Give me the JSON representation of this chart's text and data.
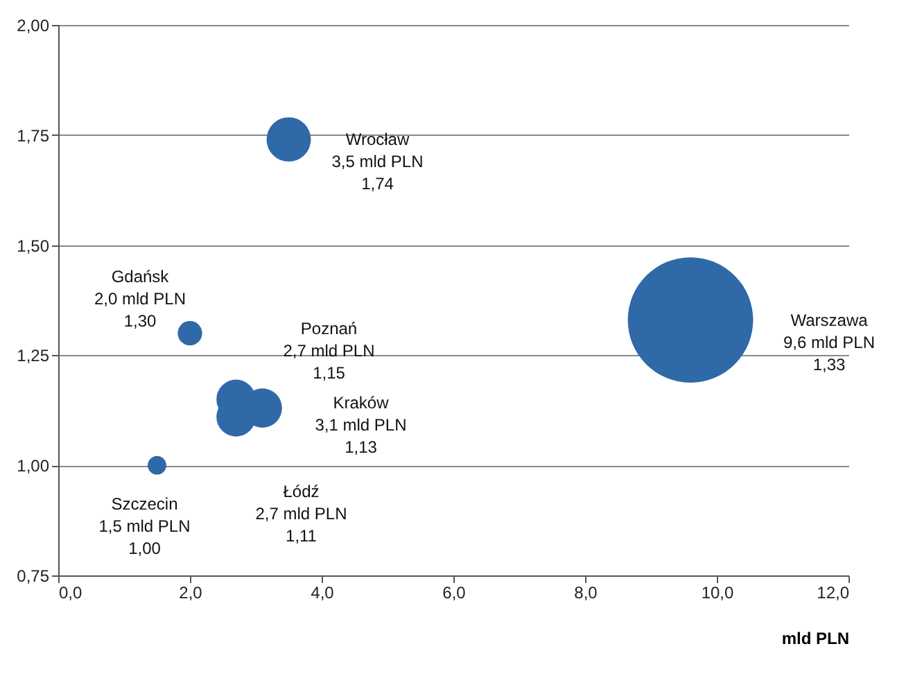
{
  "chart_data": {
    "type": "bubble",
    "xlabel": "mld PLN",
    "x": [
      3.5,
      9.6,
      2.0,
      2.7,
      3.1,
      2.7,
      1.5
    ],
    "values": [
      1.74,
      1.33,
      1.3,
      1.15,
      1.13,
      1.11,
      1.0
    ],
    "sizes": [
      0.125,
      1,
      0.038,
      0.098,
      0.098,
      0.098,
      0.022
    ],
    "color": "#2f69a8",
    "xlim": [
      0,
      12
    ],
    "xticks": [
      {
        "value": 0,
        "label": "0,0"
      },
      {
        "value": 2,
        "label": "2,0"
      },
      {
        "value": 4,
        "label": "4,0"
      },
      {
        "value": 6,
        "label": "6,0"
      },
      {
        "value": 8,
        "label": "8,0"
      },
      {
        "value": 10,
        "label": "10,0"
      },
      {
        "value": 12,
        "label": "12,0"
      }
    ],
    "ylim": [
      0.75,
      2.0
    ],
    "yticks": [
      {
        "value": 0.75,
        "label": "0,75"
      },
      {
        "value": 1.0,
        "label": "1,00"
      },
      {
        "value": 1.25,
        "label": "1,25"
      },
      {
        "value": 1.5,
        "label": "1,50"
      },
      {
        "value": 1.75,
        "label": "1,75"
      },
      {
        "value": 2.0,
        "label": "2,00"
      }
    ],
    "grid": "y",
    "annotations": [
      "Wrocław\n3,5 mld PLN\n1,74",
      "Warszawa\n9,6 mld PLN\n1,33",
      "Gdańsk\n2,0 mld PLN\n1,30",
      "Poznań\n2,7 mld PLN\n1,15",
      "Kraków\n3,1 mld PLN\n1,13",
      "Łódź\n2,7 mld PLN\n1,11",
      "Szczecin\n1,5 mld PLN\n1,00"
    ]
  }
}
